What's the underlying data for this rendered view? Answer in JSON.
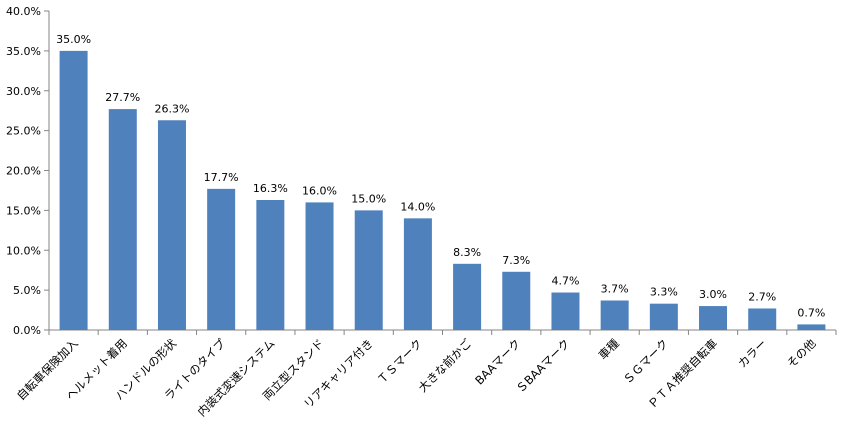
{
  "chart_data": {
    "type": "bar",
    "categories": [
      "自転車保険加入",
      "ヘルメット着用",
      "ハンドルの形状",
      "ライトのタイプ",
      "内装式変速システム",
      "両立型スタンド",
      "リアキャリア付き",
      "ＴＳマーク",
      "大きな前かご",
      "BAAマーク",
      "ＳBAAマーク",
      "車種",
      "ＳＧマーク",
      "ＰＴＡ推奨自転車",
      "カラー",
      "その他"
    ],
    "values": [
      35.0,
      27.7,
      26.3,
      17.7,
      16.3,
      16.0,
      15.0,
      14.0,
      8.3,
      7.3,
      4.7,
      3.7,
      3.3,
      3.0,
      2.7,
      0.7
    ],
    "data_labels": [
      "35.0%",
      "27.7%",
      "26.3%",
      "17.7%",
      "16.3%",
      "16.0%",
      "15.0%",
      "14.0%",
      "8.3%",
      "7.3%",
      "4.7%",
      "3.7%",
      "3.3%",
      "3.0%",
      "2.7%",
      "0.7%"
    ],
    "y_ticks": [
      "0.0%",
      "5.0%",
      "10.0%",
      "15.0%",
      "20.0%",
      "25.0%",
      "30.0%",
      "35.0%",
      "40.0%"
    ],
    "ylim": [
      0,
      40
    ],
    "y_step": 5,
    "grid": false,
    "legend": "none",
    "bar_color": "#4f81bd",
    "axis_color": "#868686"
  }
}
